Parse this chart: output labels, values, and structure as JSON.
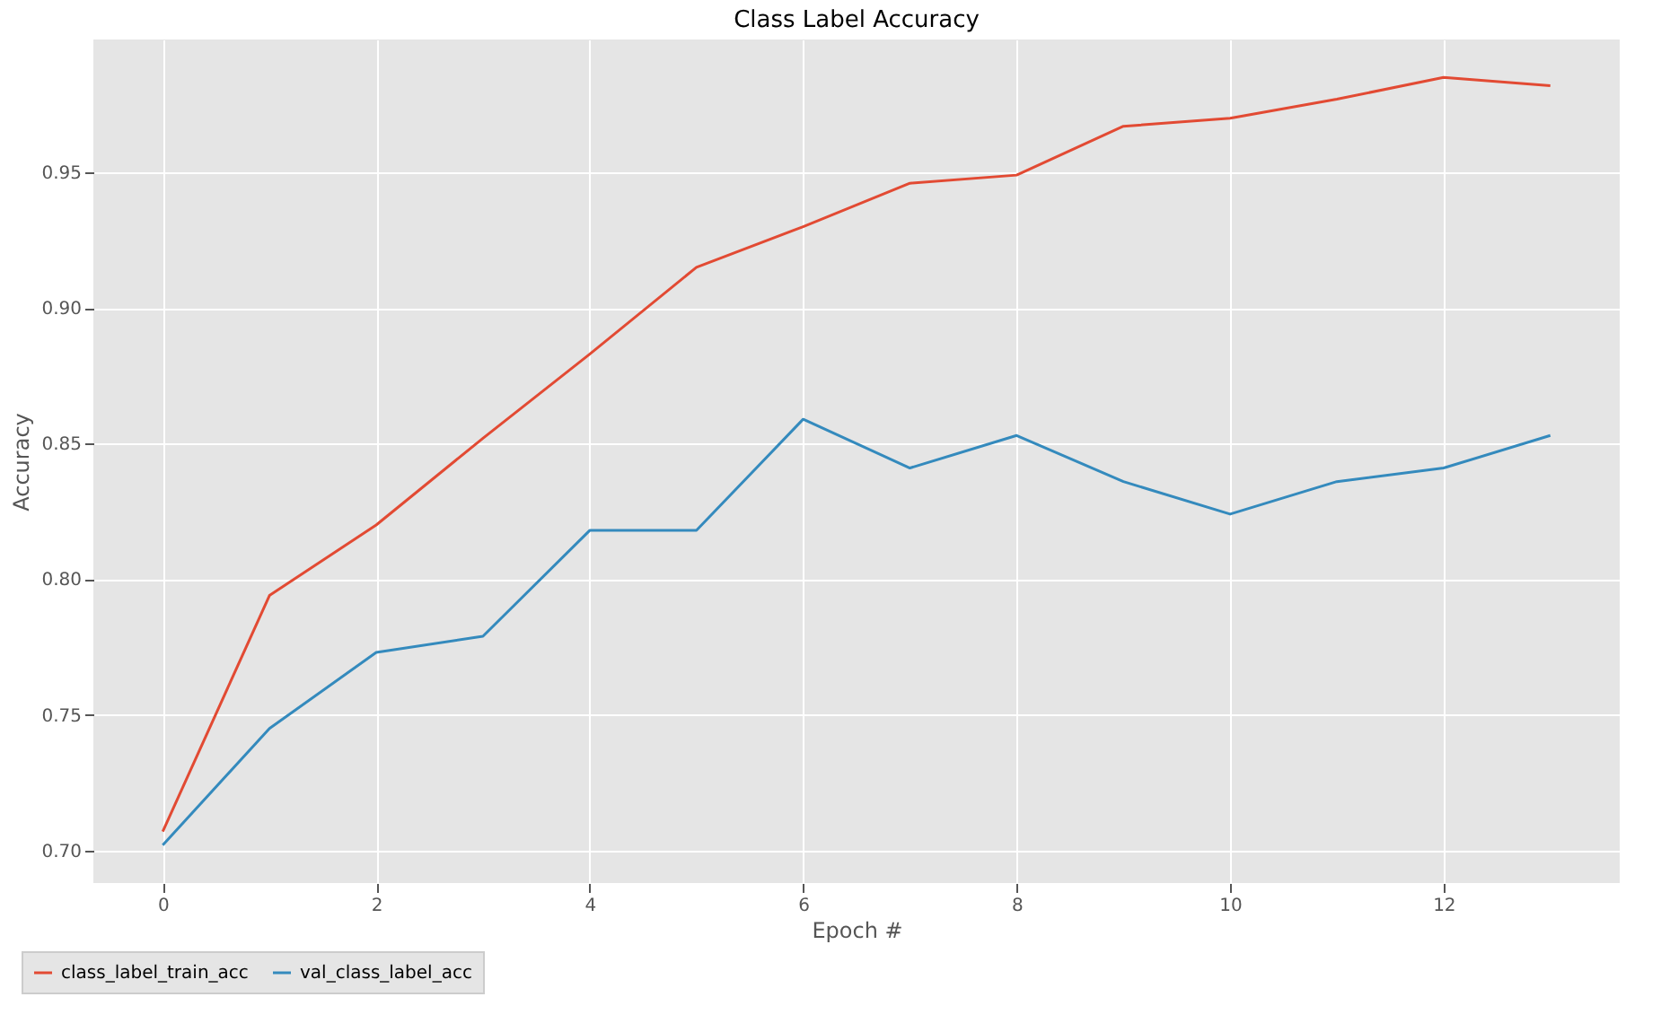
{
  "chart_data": {
    "type": "line",
    "title": "Class Label Accuracy",
    "xlabel": "Epoch #",
    "ylabel": "Accuracy",
    "x": [
      0,
      1,
      2,
      3,
      4,
      5,
      6,
      7,
      8,
      9,
      10,
      11,
      12,
      13
    ],
    "series": [
      {
        "name": "class_label_train_acc",
        "color": "#e24a33",
        "values": [
          0.707,
          0.794,
          0.82,
          0.852,
          0.883,
          0.915,
          0.93,
          0.946,
          0.949,
          0.967,
          0.97,
          0.977,
          0.985,
          0.982
        ]
      },
      {
        "name": "val_class_label_acc",
        "color": "#348abd",
        "values": [
          0.702,
          0.745,
          0.773,
          0.779,
          0.818,
          0.818,
          0.859,
          0.841,
          0.853,
          0.836,
          0.824,
          0.836,
          0.841,
          0.853
        ]
      }
    ],
    "xlim": [
      -0.65,
      13.65
    ],
    "xticks": [
      0,
      2,
      4,
      6,
      8,
      10,
      12
    ],
    "ylim": [
      0.688,
      0.999
    ],
    "yticks": [
      {
        "value": 0.7,
        "label": "0.70"
      },
      {
        "value": 0.75,
        "label": "0.75"
      },
      {
        "value": 0.8,
        "label": "0.80"
      },
      {
        "value": 0.85,
        "label": "0.85"
      },
      {
        "value": 0.9,
        "label": "0.90"
      },
      {
        "value": 0.95,
        "label": "0.95"
      }
    ],
    "grid": true,
    "legend": "bottom left",
    "marker": "none",
    "line_style": "solid"
  }
}
